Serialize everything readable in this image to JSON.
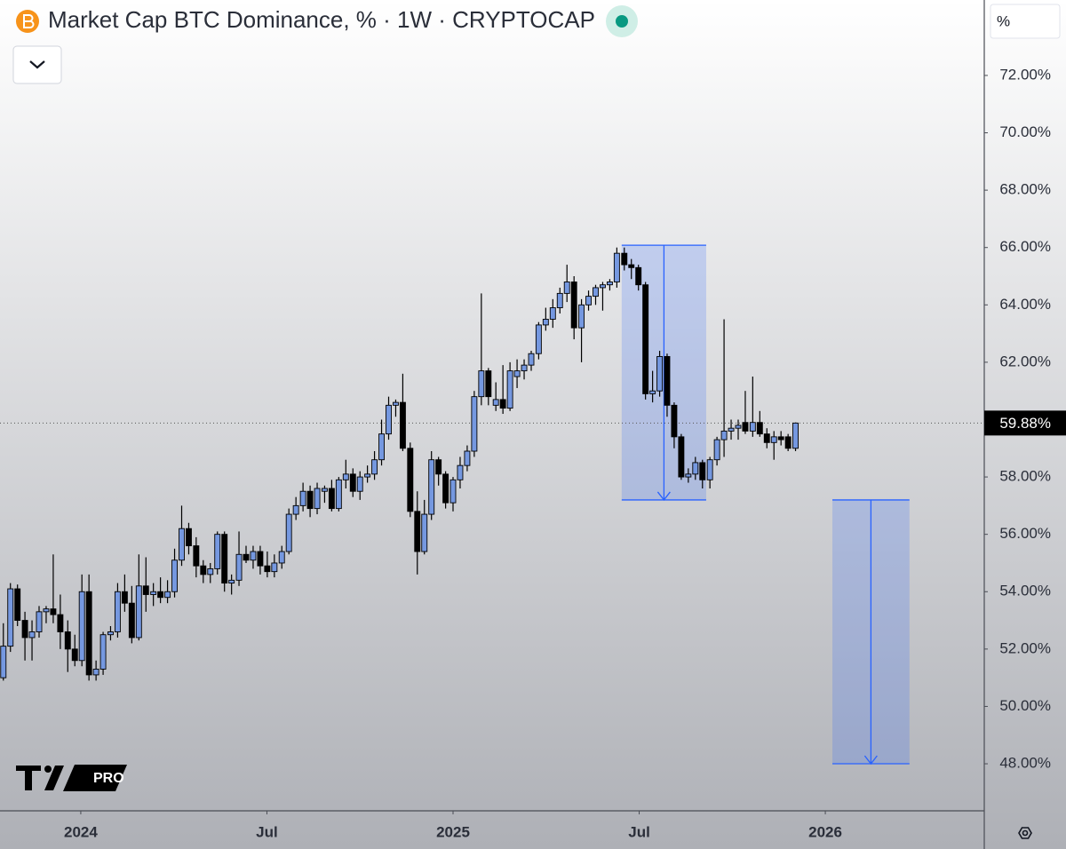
{
  "chart_data": {
    "type": "candlestick",
    "title": "Market Cap BTC Dominance, % · 1W · CRYPTOCAP",
    "unit_label": "%",
    "last_value_label": "59.88%",
    "up_color": "#7598e0",
    "down_color": "#000000",
    "xlim": [
      2023.783,
      2026.427
    ],
    "xticks": [
      2024,
      {
        "value": 2024.5,
        "label": "Jul"
      },
      2025,
      {
        "value": 2025.5,
        "label": "Jul"
      },
      2026
    ],
    "ylim": [
      46.36,
      74.63
    ],
    "yticks": [
      {
        "value": 48,
        "label": "48.00%"
      },
      {
        "value": 50,
        "label": "50.00%"
      },
      {
        "value": 52,
        "label": "52.00%"
      },
      {
        "value": 54,
        "label": "54.00%"
      },
      {
        "value": 56,
        "label": "56.00%"
      },
      {
        "value": 58,
        "label": "58.00%"
      },
      {
        "value": 60,
        "label": "60.00%"
      },
      {
        "value": 62,
        "label": "62.00%"
      },
      {
        "value": 64,
        "label": "64.00%"
      },
      {
        "value": 66,
        "label": "66.00%"
      },
      {
        "value": 68,
        "label": "68.00%"
      },
      {
        "value": 70,
        "label": "70.00%"
      },
      {
        "value": 72,
        "label": "72.00%"
      }
    ],
    "x": [
      2023.792,
      2023.811,
      2023.83,
      2023.85,
      2023.869,
      2023.888,
      2023.907,
      2023.926,
      2023.945,
      2023.965,
      2023.984,
      2024.003,
      2024.022,
      2024.041,
      2024.06,
      2024.08,
      2024.099,
      2024.118,
      2024.137,
      2024.156,
      2024.175,
      2024.195,
      2024.214,
      2024.233,
      2024.252,
      2024.271,
      2024.29,
      2024.31,
      2024.329,
      2024.348,
      2024.367,
      2024.386,
      2024.405,
      2024.425,
      2024.444,
      2024.463,
      2024.482,
      2024.501,
      2024.52,
      2024.54,
      2024.559,
      2024.578,
      2024.597,
      2024.616,
      2024.635,
      2024.655,
      2024.674,
      2024.693,
      2024.712,
      2024.731,
      2024.75,
      2024.77,
      2024.789,
      2024.808,
      2024.827,
      2024.846,
      2024.865,
      2024.885,
      2024.904,
      2024.923,
      2024.942,
      2024.961,
      2024.98,
      2025.0,
      2025.019,
      2025.038,
      2025.057,
      2025.076,
      2025.095,
      2025.115,
      2025.134,
      2025.153,
      2025.172,
      2025.191,
      2025.21,
      2025.23,
      2025.249,
      2025.268,
      2025.287,
      2025.306,
      2025.325,
      2025.345,
      2025.364,
      2025.383,
      2025.402,
      2025.421,
      2025.44,
      2025.46,
      2025.479,
      2025.498,
      2025.517,
      2025.536,
      2025.555,
      2025.575,
      2025.594,
      2025.613,
      2025.632,
      2025.651,
      2025.67,
      2025.69,
      2025.709,
      2025.728,
      2025.747,
      2025.766,
      2025.785,
      2025.805,
      2025.824,
      2025.843,
      2025.862,
      2025.881,
      2025.9,
      2025.92
    ],
    "open": [
      51.0,
      52.1,
      54.1,
      53.0,
      52.4,
      52.6,
      53.3,
      53.4,
      53.2,
      52.6,
      52.0,
      51.6,
      54.0,
      51.1,
      51.3,
      52.5,
      52.6,
      54.0,
      53.6,
      52.4,
      54.2,
      53.9,
      54.0,
      53.8,
      54.0,
      55.1,
      56.2,
      55.6,
      54.9,
      54.6,
      54.8,
      56.0,
      54.3,
      54.4,
      55.3,
      55.1,
      55.4,
      54.9,
      54.7,
      55.0,
      55.4,
      56.7,
      57.0,
      57.5,
      56.9,
      57.5,
      57.6,
      56.9,
      57.9,
      58.1,
      57.5,
      58.0,
      58.1,
      58.6,
      59.5,
      60.5,
      60.6,
      59.0,
      56.8,
      55.4,
      56.7,
      58.6,
      58.1,
      57.1,
      57.9,
      58.4,
      58.9,
      60.8,
      61.7,
      60.5,
      60.7,
      60.4,
      61.5,
      61.7,
      61.9,
      62.3,
      63.3,
      63.5,
      63.9,
      64.4,
      64.8,
      63.2,
      64.0,
      64.3,
      64.6,
      64.7,
      64.8,
      65.8,
      65.4,
      65.3,
      64.7,
      60.9,
      61.0,
      62.2,
      60.5,
      59.4,
      58.0,
      58.1,
      58.5,
      57.9,
      58.6,
      59.3,
      59.6,
      59.7,
      59.9,
      59.6,
      59.9,
      59.5,
      59.2,
      59.4,
      59.4,
      59.0
    ],
    "high": [
      52.9,
      54.3,
      54.25,
      53.3,
      53.0,
      53.5,
      53.5,
      55.3,
      53.9,
      53.0,
      52.5,
      54.6,
      54.6,
      51.6,
      52.6,
      52.8,
      54.3,
      54.6,
      54.2,
      55.3,
      55.2,
      54.3,
      54.5,
      54.4,
      55.5,
      57.0,
      56.4,
      55.9,
      55.1,
      55.0,
      56.1,
      56.1,
      54.6,
      56.1,
      55.6,
      55.6,
      55.6,
      55.4,
      55.3,
      55.6,
      56.9,
      57.3,
      57.8,
      57.7,
      57.8,
      57.7,
      57.9,
      58.0,
      58.6,
      58.3,
      58.2,
      58.4,
      58.9,
      60.0,
      60.8,
      60.7,
      61.6,
      59.2,
      57.5,
      57.2,
      58.9,
      58.7,
      58.2,
      58.0,
      58.7,
      59.1,
      61.0,
      64.4,
      61.8,
      61.3,
      61.9,
      62.0,
      62.1,
      62.1,
      62.4,
      63.4,
      63.9,
      64.2,
      64.6,
      65.4,
      65.0,
      64.2,
      64.5,
      64.7,
      64.8,
      64.9,
      66.0,
      66.0,
      65.6,
      65.4,
      64.8,
      61.7,
      62.4,
      62.3,
      60.6,
      59.5,
      58.3,
      58.7,
      58.6,
      58.7,
      59.4,
      63.5,
      60.0,
      60.0,
      61.0,
      61.5,
      60.3,
      59.7,
      59.6,
      59.6,
      59.5,
      59.9
    ],
    "low": [
      50.9,
      51.9,
      52.8,
      51.6,
      51.6,
      52.4,
      52.9,
      52.9,
      52.0,
      51.2,
      51.4,
      51.4,
      50.9,
      50.9,
      51.1,
      52.3,
      52.4,
      53.3,
      52.2,
      52.3,
      53.3,
      53.5,
      53.6,
      53.6,
      53.8,
      54.9,
      55.3,
      54.5,
      54.3,
      54.3,
      54.6,
      54.0,
      53.9,
      54.2,
      55.0,
      54.8,
      54.6,
      54.5,
      54.5,
      54.8,
      55.3,
      56.5,
      56.8,
      56.6,
      56.7,
      57.1,
      56.8,
      56.8,
      57.6,
      57.3,
      57.2,
      57.8,
      57.9,
      58.4,
      59.3,
      60.1,
      58.9,
      56.6,
      54.6,
      55.3,
      56.5,
      57.7,
      56.9,
      56.8,
      57.6,
      58.2,
      58.7,
      60.5,
      60.5,
      60.3,
      60.2,
      60.3,
      61.1,
      61.4,
      61.7,
      62.1,
      63.1,
      63.2,
      63.7,
      64.1,
      62.8,
      62.0,
      63.8,
      64.0,
      63.8,
      64.5,
      64.6,
      65.2,
      64.9,
      64.5,
      60.7,
      60.6,
      60.8,
      60.1,
      59.0,
      57.9,
      57.8,
      57.9,
      57.6,
      57.6,
      58.4,
      58.7,
      59.3,
      59.3,
      59.5,
      59.4,
      59.4,
      59.0,
      58.6,
      59.1,
      58.9,
      58.9
    ],
    "close": [
      52.1,
      54.1,
      53.0,
      52.4,
      52.6,
      53.3,
      53.4,
      53.2,
      52.6,
      52.0,
      51.6,
      54.0,
      51.1,
      51.3,
      52.5,
      52.6,
      54.0,
      53.6,
      52.4,
      54.2,
      53.9,
      54.0,
      53.8,
      54.0,
      55.1,
      56.2,
      55.6,
      54.9,
      54.6,
      54.8,
      56.0,
      54.3,
      54.4,
      55.3,
      55.1,
      55.4,
      54.9,
      54.7,
      55.0,
      55.4,
      56.7,
      57.0,
      57.5,
      56.9,
      57.6,
      57.6,
      56.9,
      57.9,
      58.1,
      57.5,
      58.0,
      58.1,
      58.6,
      59.5,
      60.5,
      60.6,
      59.0,
      56.8,
      55.4,
      56.7,
      58.6,
      58.1,
      57.1,
      57.9,
      58.4,
      58.9,
      60.8,
      61.7,
      60.8,
      60.7,
      60.4,
      61.7,
      61.7,
      61.9,
      62.3,
      63.3,
      63.5,
      63.9,
      64.4,
      64.8,
      63.2,
      64.0,
      64.3,
      64.6,
      64.7,
      64.8,
      65.8,
      65.4,
      65.3,
      64.7,
      60.9,
      61.0,
      62.2,
      60.5,
      59.4,
      58.0,
      58.1,
      58.5,
      57.9,
      58.6,
      59.3,
      59.6,
      59.7,
      59.8,
      59.6,
      59.9,
      59.5,
      59.2,
      59.4,
      59.3,
      59.0,
      59.88
    ],
    "annotations": [
      {
        "x": [
          2025.453,
          2025.68
        ],
        "y": [
          66.08,
          57.2
        ],
        "color": "#2962ff"
      },
      {
        "x": [
          2026.019,
          2026.226
        ],
        "y": [
          57.2,
          48.0
        ],
        "color": "#2962ff"
      }
    ]
  },
  "watermark": "PRO"
}
